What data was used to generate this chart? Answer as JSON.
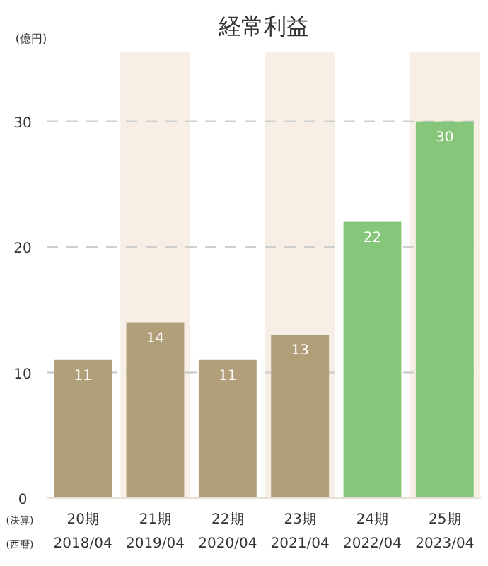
{
  "chart_data": {
    "type": "bar",
    "title": "経常利益",
    "ylabel": "(億円)",
    "categories": [
      "20期\n2018/04",
      "21期\n2019/04",
      "22期\n2020/04",
      "23期\n2021/04",
      "24期\n2022/04",
      "25期\n2023/04"
    ],
    "values": [
      11,
      14,
      11,
      13,
      22,
      30
    ],
    "colors": [
      "#b19f79",
      "#b19f79",
      "#b19f79",
      "#b19f79",
      "#86c67a",
      "#86c67a"
    ],
    "ylim": [
      0,
      35.5
    ],
    "yticks": [
      0,
      10,
      20,
      30
    ],
    "grid": "y",
    "line_style": "dashed",
    "data_labels": true,
    "bands": [
      {
        "axis": "x",
        "from": "21期\n2019/04",
        "to": "21期\n2019/04",
        "color": "#f7eee5"
      },
      {
        "axis": "x",
        "from": "23期\n2021/04",
        "to": "23期\n2021/04",
        "color": "#f7eee5"
      },
      {
        "axis": "x",
        "from": "25期\n2023/04",
        "to": "25期\n2023/04",
        "color": "#f7eee5"
      }
    ],
    "annotations": [
      "(決算)",
      "(西暦)"
    ]
  }
}
